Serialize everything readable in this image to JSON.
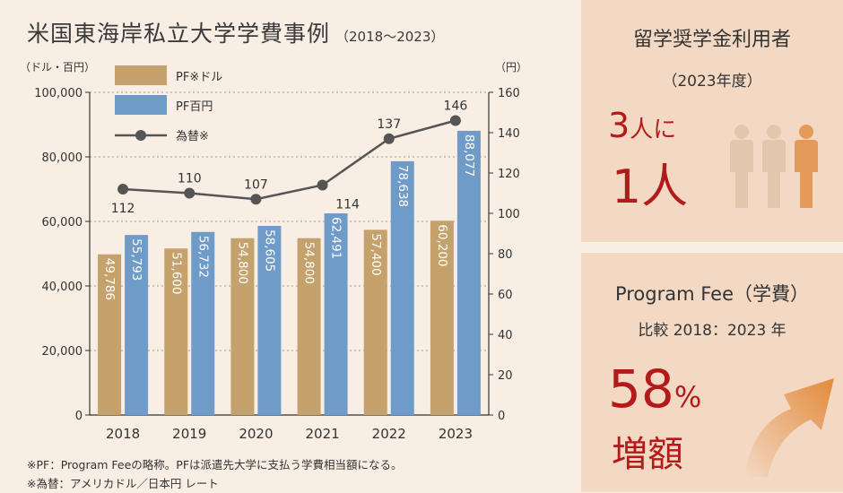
{
  "title": "米国東海岸私立大学学費事例",
  "title_sub": "（2018～2023）",
  "left_axis_label": "（ドル・百円）",
  "right_axis_label": "（円）",
  "notes": [
    "※PF：Program Feeの略称。PFは派遣先大学に支払う学費相当額になる。",
    "※為替：アメリカドル／日本円 レート"
  ],
  "colors": {
    "usd": "#c5a26b",
    "jpy": "#6f9bc9",
    "fx": "#555555",
    "accent": "#b31b1b",
    "panel": "#f3d9c4",
    "bg": "#f8eee3"
  },
  "chart_data": {
    "type": "bar",
    "categories": [
      "2018",
      "2019",
      "2020",
      "2021",
      "2022",
      "2023"
    ],
    "series": [
      {
        "name": "PF※ドル",
        "values": [
          49786,
          51600,
          54800,
          54800,
          57400,
          60200
        ],
        "labels": [
          "49,786",
          "51,600",
          "54,800",
          "54,800",
          "57,400",
          "60,200"
        ],
        "color": "#c5a26b",
        "axis": "left"
      },
      {
        "name": "PF百円",
        "values": [
          55793,
          56732,
          58605,
          62491,
          78638,
          88077
        ],
        "labels": [
          "55,793",
          "56,732",
          "58,605",
          "62,491",
          "78,638",
          "88,077"
        ],
        "color": "#6f9bc9",
        "axis": "left"
      },
      {
        "name": "為替※",
        "type": "line",
        "values": [
          112,
          110,
          107,
          114,
          137,
          146
        ],
        "color": "#555555",
        "axis": "right"
      }
    ],
    "left_ylim": [
      0,
      100000
    ],
    "left_ticks": [
      "0",
      "20,000",
      "40,000",
      "60,000",
      "80,000",
      "100,000"
    ],
    "right_ylim": [
      0,
      160
    ],
    "right_ticks": [
      "0",
      "20",
      "40",
      "60",
      "80",
      "100",
      "120",
      "140",
      "160"
    ],
    "legend_position": "top-left"
  },
  "panel1": {
    "title": "留学奨学金利用者",
    "sub": "（2023年度）",
    "ratio_num1": "3",
    "ratio_text1": "人に",
    "ratio_line2": "1人",
    "icon": "people-icon"
  },
  "panel2": {
    "title": "Program Fee（学費）",
    "sub": "比較 2018：2023 年",
    "pct": "58",
    "pct_unit": "%",
    "increase": "増額",
    "icon": "up-arrow-icon"
  }
}
